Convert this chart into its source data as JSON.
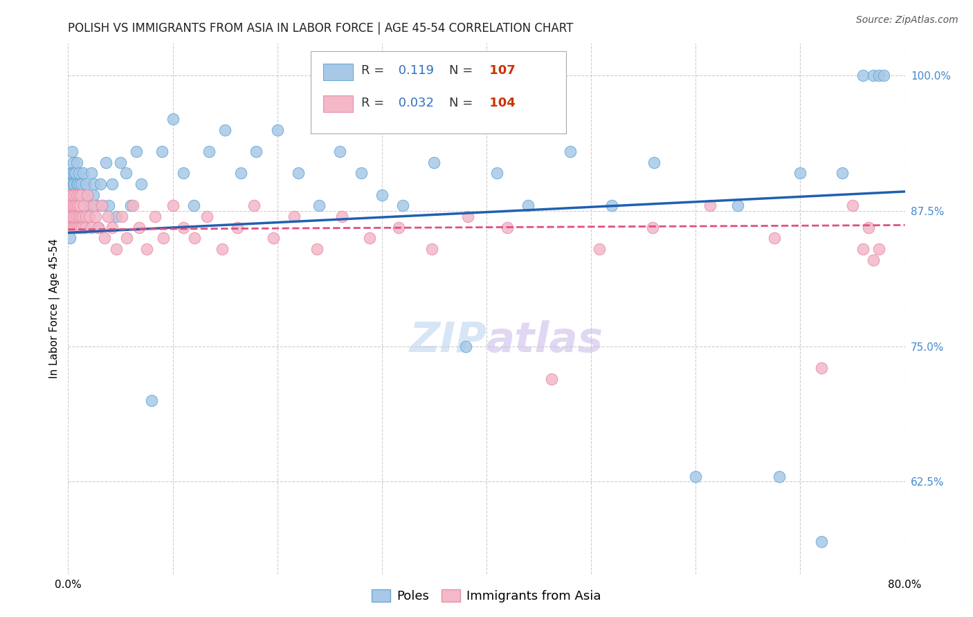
{
  "title": "POLISH VS IMMIGRANTS FROM ASIA IN LABOR FORCE | AGE 45-54 CORRELATION CHART",
  "source": "Source: ZipAtlas.com",
  "ylabel": "In Labor Force | Age 45-54",
  "xlim": [
    0.0,
    0.8
  ],
  "ylim": [
    0.54,
    1.03
  ],
  "ytick_positions": [
    0.625,
    0.75,
    0.875,
    1.0
  ],
  "ytick_labels": [
    "62.5%",
    "75.0%",
    "87.5%",
    "100.0%"
  ],
  "poles_R": "0.119",
  "poles_N": "107",
  "asia_R": "0.032",
  "asia_N": "104",
  "poles_color": "#a8c8e8",
  "poles_edge_color": "#6aaad4",
  "asia_color": "#f4b8c8",
  "asia_edge_color": "#e890a8",
  "poles_line_color": "#2060b0",
  "asia_line_color": "#e05080",
  "tick_color_right": "#4488cc",
  "legend_text_color": "#333333",
  "legend_R_N_color": "#3070c0",
  "legend_N_val_color": "#cc3300",
  "watermark_zip": "#c0d8f0",
  "watermark_atlas": "#d8c8f0",
  "background_color": "#ffffff",
  "grid_color": "#cccccc",
  "title_fontsize": 12,
  "axis_label_fontsize": 11,
  "tick_fontsize": 11,
  "legend_fontsize": 13,
  "source_fontsize": 10,
  "poles_scatter_x": [
    0.001,
    0.001,
    0.002,
    0.002,
    0.002,
    0.002,
    0.003,
    0.003,
    0.003,
    0.003,
    0.004,
    0.004,
    0.004,
    0.004,
    0.005,
    0.005,
    0.005,
    0.005,
    0.006,
    0.006,
    0.006,
    0.006,
    0.007,
    0.007,
    0.007,
    0.008,
    0.008,
    0.008,
    0.009,
    0.009,
    0.01,
    0.01,
    0.01,
    0.011,
    0.011,
    0.012,
    0.012,
    0.013,
    0.013,
    0.014,
    0.015,
    0.015,
    0.016,
    0.017,
    0.018,
    0.019,
    0.02,
    0.021,
    0.022,
    0.024,
    0.025,
    0.027,
    0.029,
    0.031,
    0.033,
    0.036,
    0.039,
    0.042,
    0.046,
    0.05,
    0.055,
    0.06,
    0.065,
    0.07,
    0.08,
    0.09,
    0.1,
    0.11,
    0.12,
    0.135,
    0.15,
    0.165,
    0.18,
    0.2,
    0.22,
    0.24,
    0.26,
    0.28,
    0.3,
    0.32,
    0.35,
    0.38,
    0.41,
    0.44,
    0.48,
    0.52,
    0.56,
    0.6,
    0.64,
    0.68,
    0.7,
    0.72,
    0.74,
    0.76,
    0.77,
    0.775,
    0.78
  ],
  "poles_scatter_y": [
    0.87,
    0.89,
    0.85,
    0.87,
    0.89,
    0.91,
    0.86,
    0.88,
    0.9,
    0.91,
    0.87,
    0.89,
    0.91,
    0.93,
    0.87,
    0.88,
    0.9,
    0.92,
    0.86,
    0.88,
    0.9,
    0.91,
    0.87,
    0.89,
    0.91,
    0.88,
    0.9,
    0.92,
    0.88,
    0.9,
    0.87,
    0.89,
    0.91,
    0.88,
    0.9,
    0.87,
    0.89,
    0.88,
    0.9,
    0.91,
    0.86,
    0.88,
    0.87,
    0.9,
    0.88,
    0.89,
    0.87,
    0.88,
    0.91,
    0.89,
    0.9,
    0.88,
    0.86,
    0.9,
    0.88,
    0.92,
    0.88,
    0.9,
    0.87,
    0.92,
    0.91,
    0.88,
    0.93,
    0.9,
    0.7,
    0.93,
    0.96,
    0.91,
    0.88,
    0.93,
    0.95,
    0.91,
    0.93,
    0.95,
    0.91,
    0.88,
    0.93,
    0.91,
    0.89,
    0.88,
    0.92,
    0.75,
    0.91,
    0.88,
    0.93,
    0.88,
    0.92,
    0.63,
    0.88,
    0.63,
    0.91,
    0.57,
    0.91,
    1.0,
    1.0,
    1.0,
    1.0
  ],
  "asia_scatter_x": [
    0.001,
    0.001,
    0.002,
    0.002,
    0.003,
    0.003,
    0.004,
    0.004,
    0.005,
    0.005,
    0.006,
    0.006,
    0.007,
    0.007,
    0.008,
    0.008,
    0.009,
    0.009,
    0.01,
    0.01,
    0.011,
    0.011,
    0.012,
    0.012,
    0.013,
    0.014,
    0.015,
    0.016,
    0.017,
    0.018,
    0.02,
    0.022,
    0.024,
    0.026,
    0.029,
    0.032,
    0.035,
    0.038,
    0.042,
    0.046,
    0.051,
    0.056,
    0.062,
    0.068,
    0.075,
    0.083,
    0.091,
    0.1,
    0.11,
    0.121,
    0.133,
    0.147,
    0.162,
    0.178,
    0.196,
    0.216,
    0.238,
    0.262,
    0.288,
    0.316,
    0.348,
    0.382,
    0.42,
    0.462,
    0.508,
    0.559,
    0.614,
    0.675,
    0.72,
    0.75,
    0.76,
    0.765,
    0.77,
    0.775
  ],
  "asia_scatter_y": [
    0.86,
    0.88,
    0.87,
    0.89,
    0.86,
    0.88,
    0.87,
    0.89,
    0.86,
    0.88,
    0.87,
    0.89,
    0.86,
    0.88,
    0.87,
    0.89,
    0.86,
    0.88,
    0.87,
    0.89,
    0.86,
    0.88,
    0.87,
    0.89,
    0.86,
    0.87,
    0.88,
    0.86,
    0.87,
    0.89,
    0.87,
    0.86,
    0.88,
    0.87,
    0.86,
    0.88,
    0.85,
    0.87,
    0.86,
    0.84,
    0.87,
    0.85,
    0.88,
    0.86,
    0.84,
    0.87,
    0.85,
    0.88,
    0.86,
    0.85,
    0.87,
    0.84,
    0.86,
    0.88,
    0.85,
    0.87,
    0.84,
    0.87,
    0.85,
    0.86,
    0.84,
    0.87,
    0.86,
    0.72,
    0.84,
    0.86,
    0.88,
    0.85,
    0.73,
    0.88,
    0.84,
    0.86,
    0.83,
    0.84
  ],
  "poles_trend_x": [
    0.0,
    0.8
  ],
  "poles_trend_y": [
    0.855,
    0.893
  ],
  "asia_trend_x": [
    0.0,
    0.8
  ],
  "asia_trend_y": [
    0.858,
    0.862
  ]
}
